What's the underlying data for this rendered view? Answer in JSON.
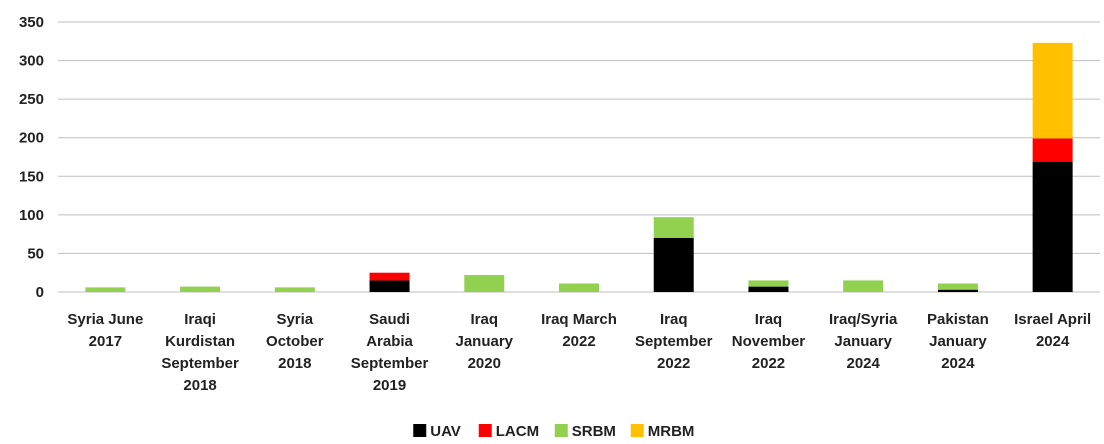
{
  "chart_data": {
    "type": "bar",
    "stacked": true,
    "title": "",
    "xlabel": "",
    "ylabel": "",
    "ylim": [
      0,
      350
    ],
    "yticks": [
      0,
      50,
      100,
      150,
      200,
      250,
      300,
      350
    ],
    "grid": true,
    "legend_position": "bottom",
    "categories": [
      [
        "Syria June",
        "2017"
      ],
      [
        "Iraqi",
        "Kurdistan",
        "September",
        "2018"
      ],
      [
        "Syria",
        "October",
        "2018"
      ],
      [
        "Saudi",
        "Arabia",
        "September",
        "2019"
      ],
      [
        "Iraq",
        "January",
        "2020"
      ],
      [
        "Iraq March",
        "2022"
      ],
      [
        "Iraq",
        "September",
        "2022"
      ],
      [
        "Iraq",
        "November",
        "2022"
      ],
      [
        "Iraq/Syria",
        "January",
        "2024"
      ],
      [
        "Pakistan",
        "January",
        "2024"
      ],
      [
        "Israel April",
        "2024"
      ]
    ],
    "series": [
      {
        "name": "UAV",
        "color": "#000000",
        "values": [
          0,
          0,
          0,
          15,
          0,
          0,
          70,
          7,
          0,
          3,
          169
        ]
      },
      {
        "name": "LACM",
        "color": "#ff0000",
        "values": [
          0,
          0,
          0,
          10,
          0,
          0,
          0,
          0,
          0,
          0,
          30
        ]
      },
      {
        "name": "SRBM",
        "color": "#92d050",
        "values": [
          6,
          7,
          6,
          0,
          22,
          11,
          27,
          8,
          15,
          8,
          0
        ]
      },
      {
        "name": "MRBM",
        "color": "#ffc000",
        "values": [
          0,
          0,
          0,
          0,
          0,
          0,
          0,
          0,
          0,
          0,
          124
        ]
      }
    ]
  }
}
